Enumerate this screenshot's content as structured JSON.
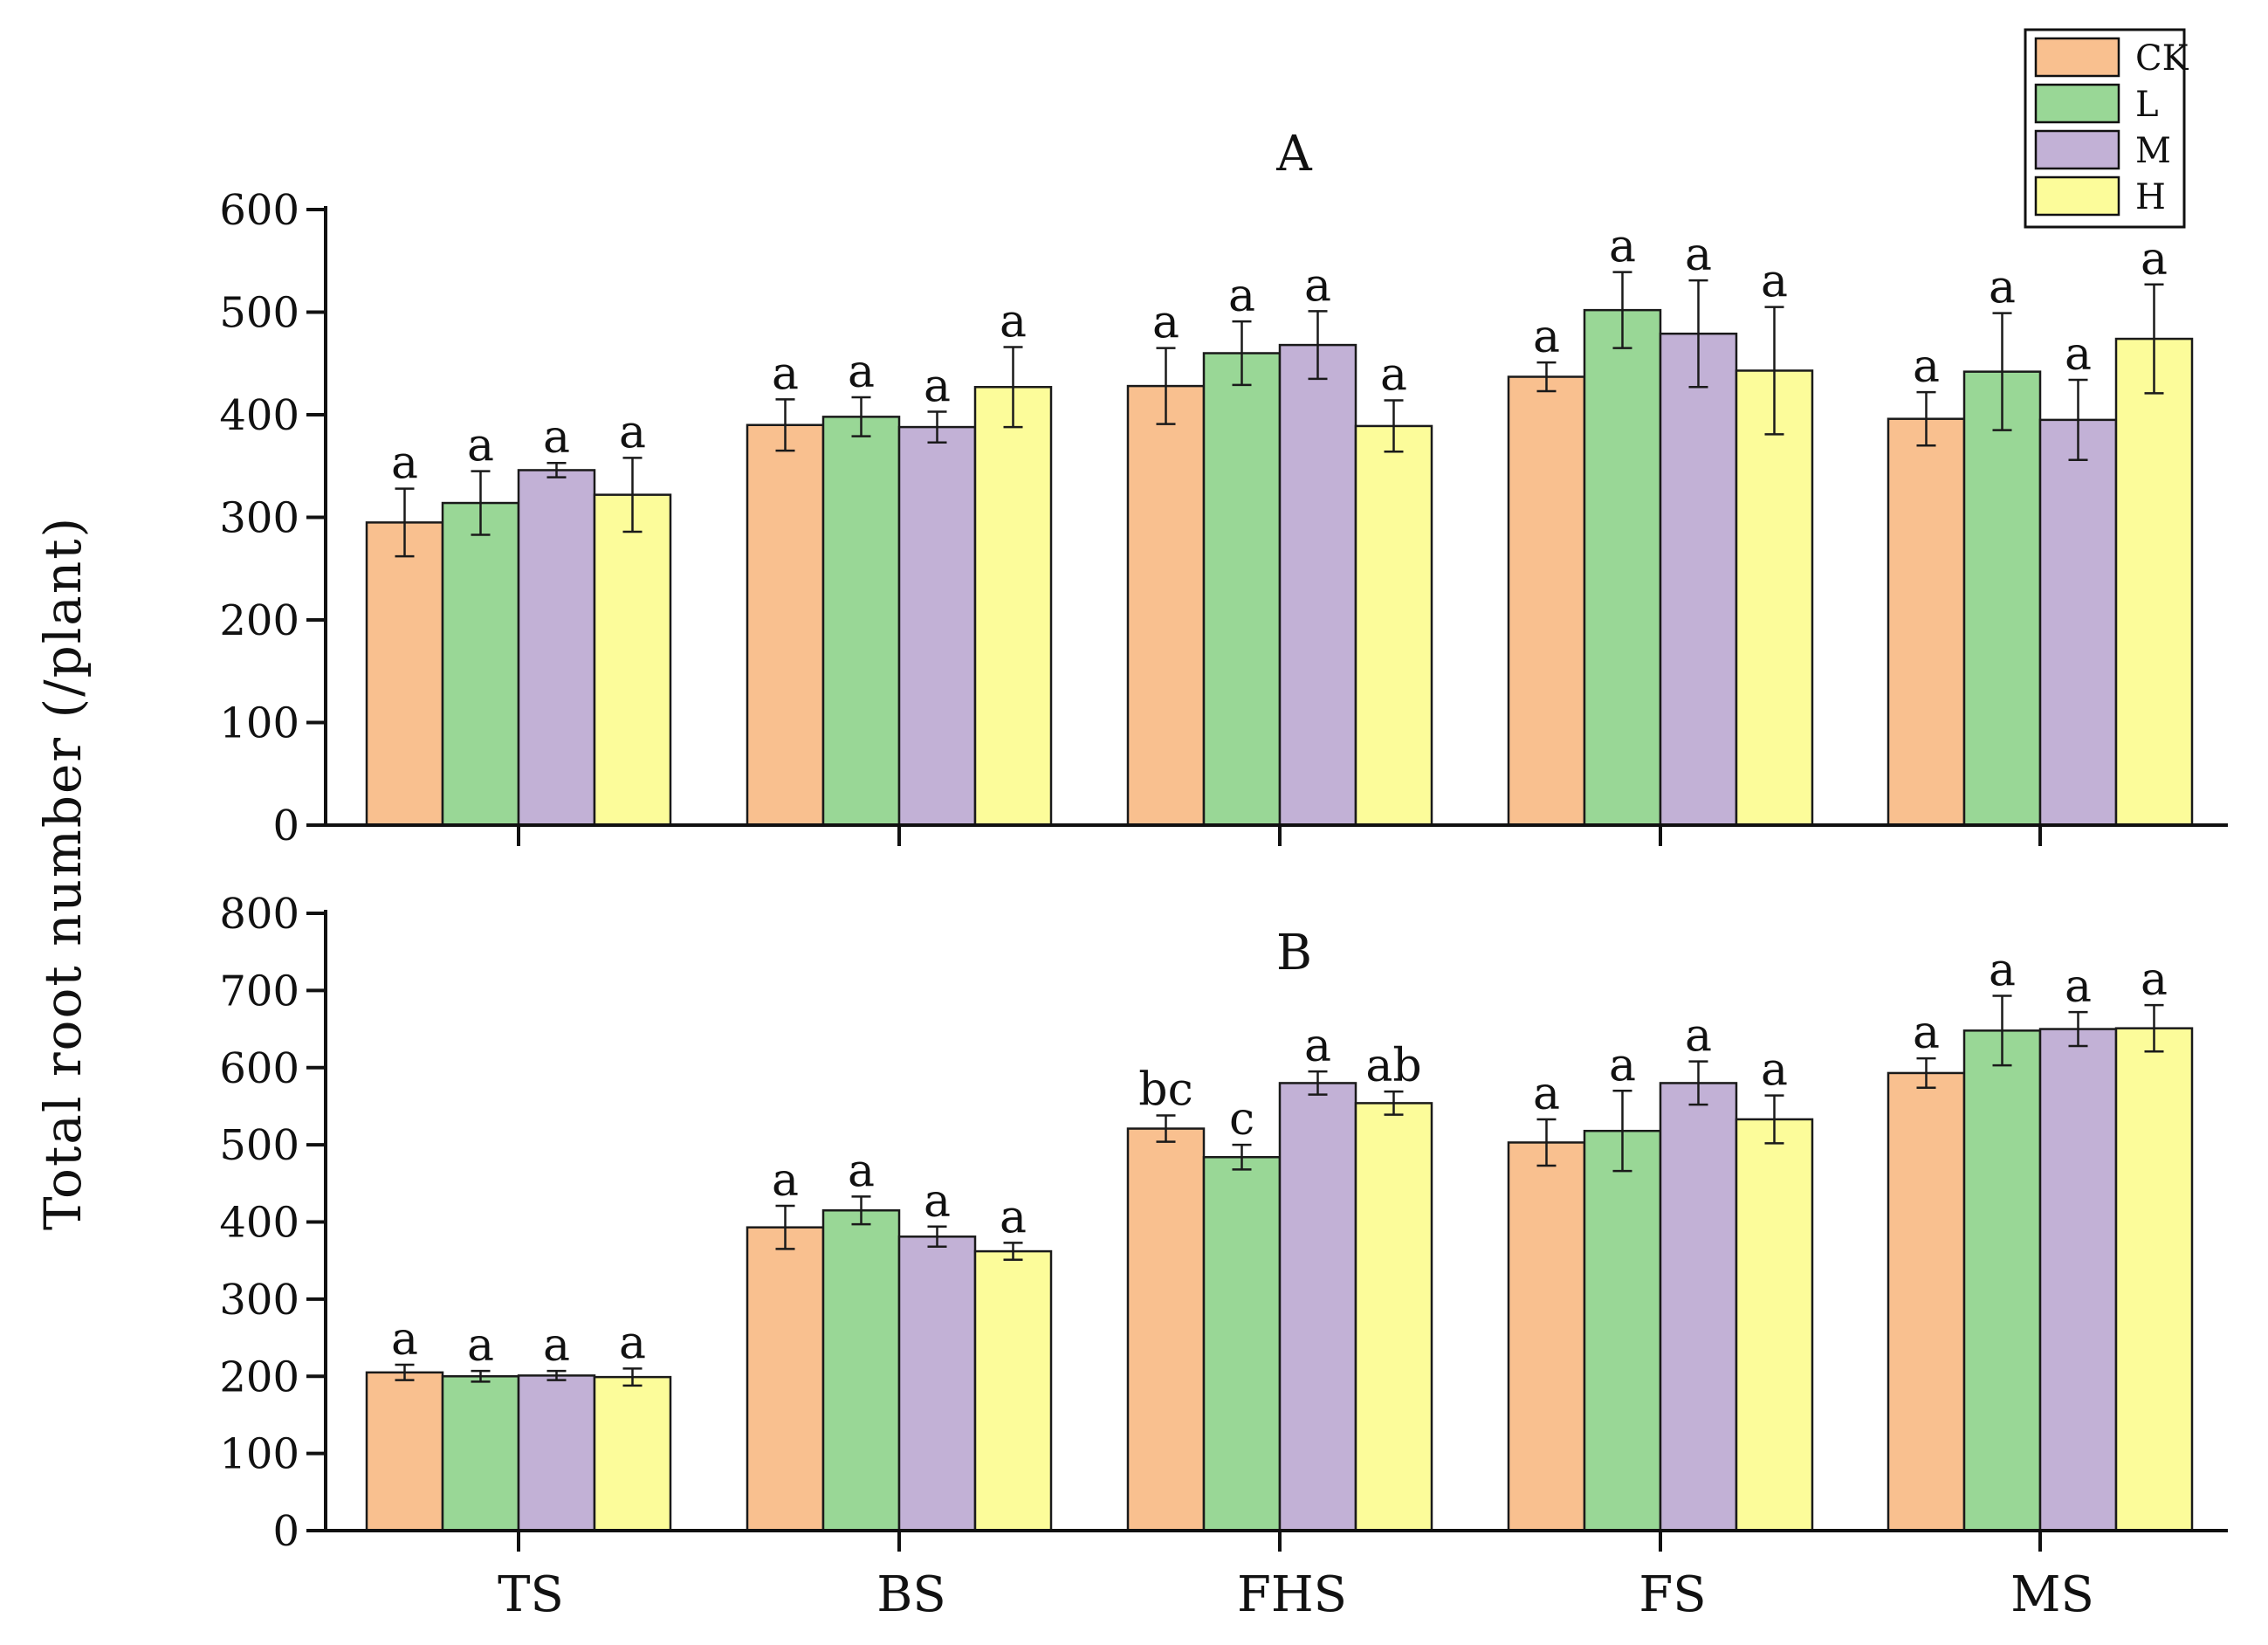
{
  "chart_data": {
    "type": "bar",
    "ylabel": "Total root number (/plant)",
    "categories": [
      "TS",
      "BS",
      "FHS",
      "FS",
      "MS"
    ],
    "series_names": [
      "CK",
      "L",
      "M",
      "H"
    ],
    "colors": {
      "CK": "#f9c08f",
      "L": "#99d796",
      "M": "#c2b1d6",
      "H": "#fcfc9a"
    },
    "legend": {
      "position": "top-right",
      "entries": [
        "CK",
        "L",
        "M",
        "H"
      ]
    },
    "panels": [
      {
        "title": "A",
        "ylim": [
          0,
          600
        ],
        "yticks": [
          0,
          100,
          200,
          300,
          400,
          500,
          600
        ],
        "series": [
          {
            "name": "CK",
            "values": [
              295,
              390,
              428,
              437,
              396
            ],
            "errors": [
              33,
              25,
              37,
              14,
              26
            ],
            "sig": [
              "a",
              "a",
              "a",
              "a",
              "a"
            ]
          },
          {
            "name": "L",
            "values": [
              314,
              398,
              460,
              502,
              442
            ],
            "errors": [
              31,
              19,
              31,
              37,
              57
            ],
            "sig": [
              "a",
              "a",
              "a",
              "a",
              "a"
            ]
          },
          {
            "name": "M",
            "values": [
              346,
              388,
              468,
              479,
              395
            ],
            "errors": [
              7,
              15,
              33,
              52,
              39
            ],
            "sig": [
              "a",
              "a",
              "a",
              "a",
              "a"
            ]
          },
          {
            "name": "H",
            "values": [
              322,
              427,
              389,
              443,
              474
            ],
            "errors": [
              36,
              39,
              25,
              62,
              53
            ],
            "sig": [
              "a",
              "a",
              "a",
              "a",
              "a"
            ]
          }
        ]
      },
      {
        "title": "B",
        "ylim": [
          0,
          800
        ],
        "yticks": [
          0,
          100,
          200,
          300,
          400,
          500,
          600,
          700,
          800
        ],
        "series": [
          {
            "name": "CK",
            "values": [
              205,
              393,
              521,
              503,
              593
            ],
            "errors": [
              10,
              28,
              17,
              30,
              19
            ],
            "sig": [
              "a",
              "a",
              "bc",
              "a",
              "a"
            ]
          },
          {
            "name": "L",
            "values": [
              200,
              415,
              484,
              518,
              648
            ],
            "errors": [
              7,
              18,
              16,
              52,
              45
            ],
            "sig": [
              "a",
              "a",
              "c",
              "a",
              "a"
            ]
          },
          {
            "name": "M",
            "values": [
              201,
              381,
              580,
              580,
              650
            ],
            "errors": [
              6,
              13,
              15,
              28,
              22
            ],
            "sig": [
              "a",
              "a",
              "a",
              "a",
              "a"
            ]
          },
          {
            "name": "H",
            "values": [
              199,
              362,
              554,
              533,
              651
            ],
            "errors": [
              11,
              11,
              15,
              31,
              30
            ],
            "sig": [
              "a",
              "a",
              "ab",
              "a",
              "a"
            ]
          }
        ]
      }
    ]
  }
}
